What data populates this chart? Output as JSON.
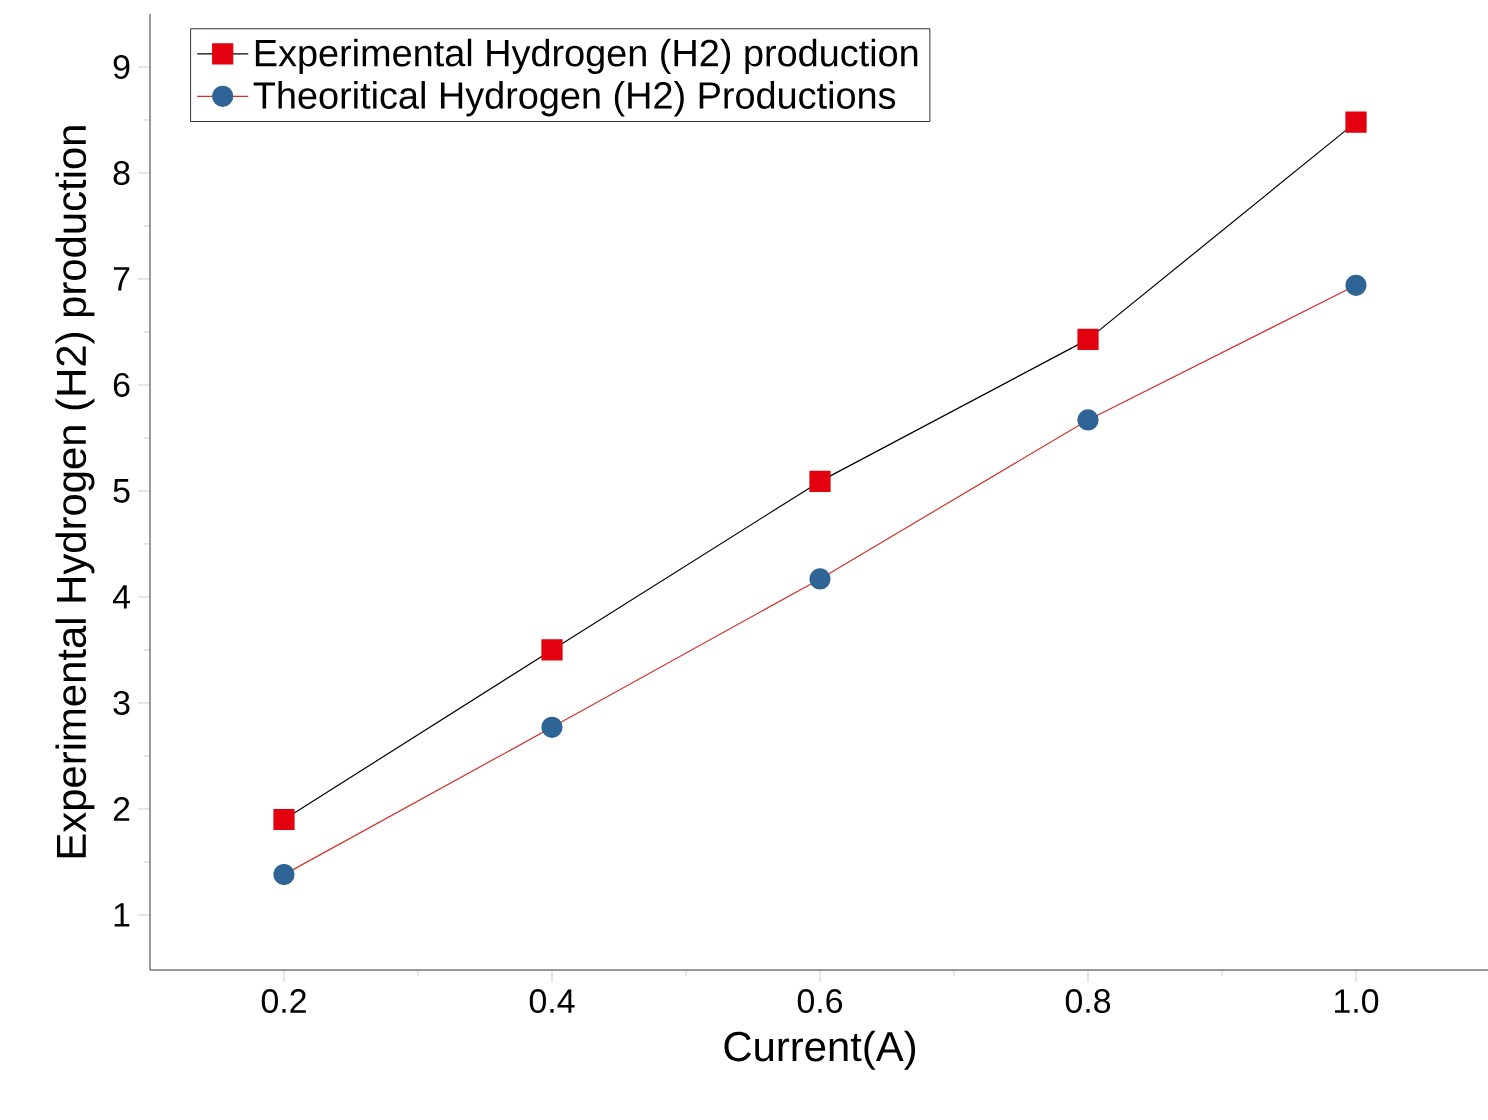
{
  "chart_data": {
    "type": "line",
    "xlabel": "Current(A)",
    "ylabel": "Experimental Hydrogen (H2) production",
    "x": [
      0.2,
      0.4,
      0.6,
      0.8,
      1.0
    ],
    "series": [
      {
        "name": "Experimental Hydrogen (H2) production",
        "color": "#e3000f",
        "marker": "square",
        "values": [
          1.9,
          3.5,
          5.09,
          6.43,
          8.48
        ]
      },
      {
        "name": "Theoritical Hydrogen (H2) Productions",
        "color": "#2e6496",
        "marker": "circle",
        "values": [
          1.38,
          2.77,
          4.17,
          5.67,
          6.94
        ]
      }
    ],
    "xlim": [
      0.1,
      1.1
    ],
    "ylim": [
      0.48,
      9.5
    ],
    "xticks": [
      {
        "value": 0.2,
        "label": "0.2"
      },
      {
        "value": 0.4,
        "label": "0.4"
      },
      {
        "value": 0.6,
        "label": "0.6"
      },
      {
        "value": 0.8,
        "label": "0.8"
      },
      {
        "value": 1.0,
        "label": "1.0"
      }
    ],
    "yticks": [
      1,
      2,
      3,
      4,
      5,
      6,
      7,
      8,
      9
    ],
    "legend": "top left",
    "grid": false
  }
}
